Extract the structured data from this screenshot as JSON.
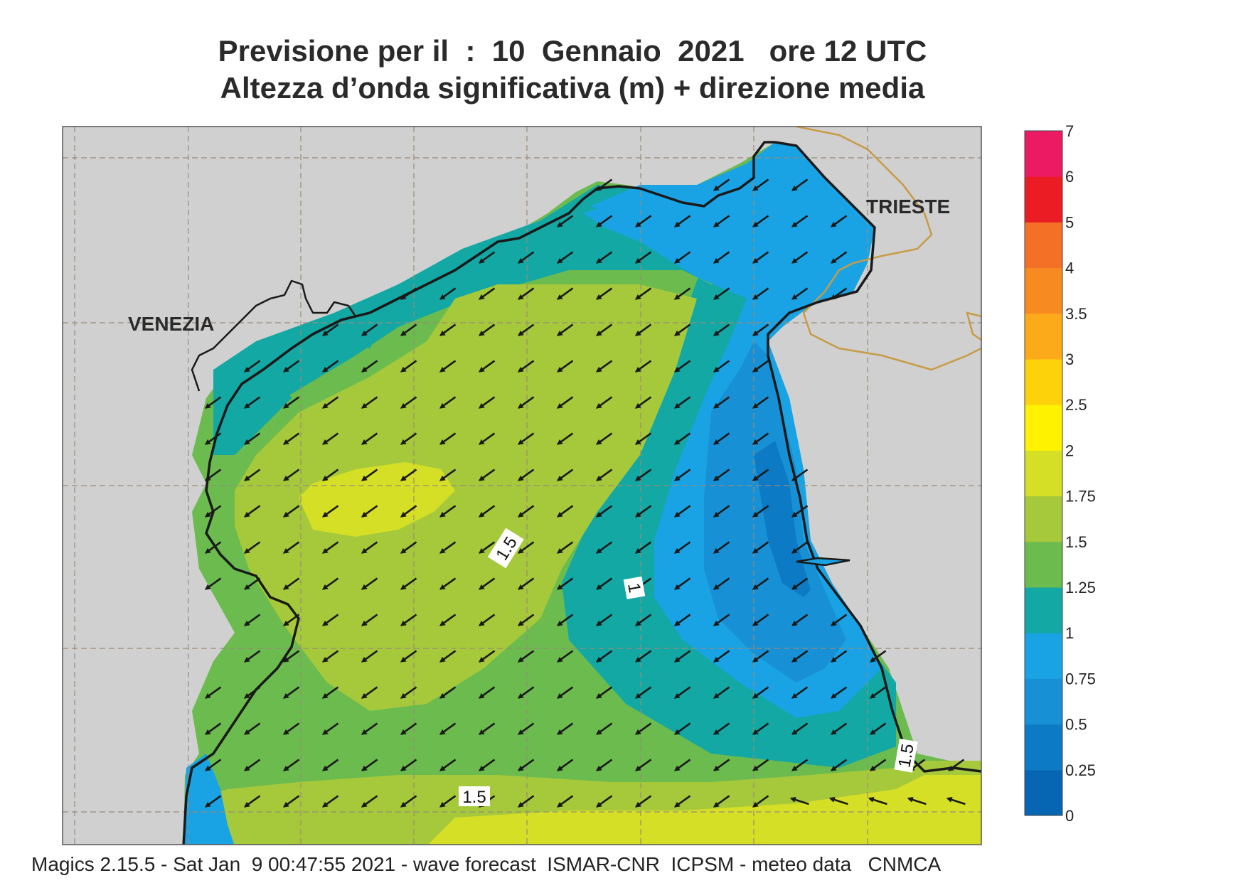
{
  "title": {
    "line1": "Previsione per il  :  10  Gennaio  2021   ore 12 UTC",
    "line2": "Altezza d’onda significativa (m) + direzione media"
  },
  "map": {
    "labels": {
      "venezia": "VENEZIA",
      "trieste": "TRIESTE"
    },
    "contour_labels": [
      "1.5",
      "1",
      "1.5",
      "1.5"
    ],
    "colors": {
      "land": "#d0d0d0",
      "coast": "#1a1a1a",
      "border": "#c89b45",
      "grid": "#9a8a78",
      "arrow": "#1a1a1a"
    },
    "wave_direction": "from north-east (arrows point south-west)"
  },
  "colorbar": {
    "ticks": [
      "0",
      "0.25",
      "0.5",
      "0.75",
      "1",
      "1.25",
      "1.5",
      "1.75",
      "2",
      "2.5",
      "3",
      "3.5",
      "4",
      "5",
      "6",
      "7"
    ],
    "colors": [
      "#0766b4",
      "#0c7ac5",
      "#1890d6",
      "#1aa3e4",
      "#13a8a4",
      "#6bbb4f",
      "#a6c93c",
      "#d5df25",
      "#fef200",
      "#fed20a",
      "#fcaa1a",
      "#f88a22",
      "#f37026",
      "#ec1c24",
      "#ec1a63"
    ]
  },
  "footer": "Magics 2.15.5 - Sat Jan  9 00:47:55 2021 - wave forecast  ISMAR-CNR  ICPSM - meteo data   CNMCA"
}
